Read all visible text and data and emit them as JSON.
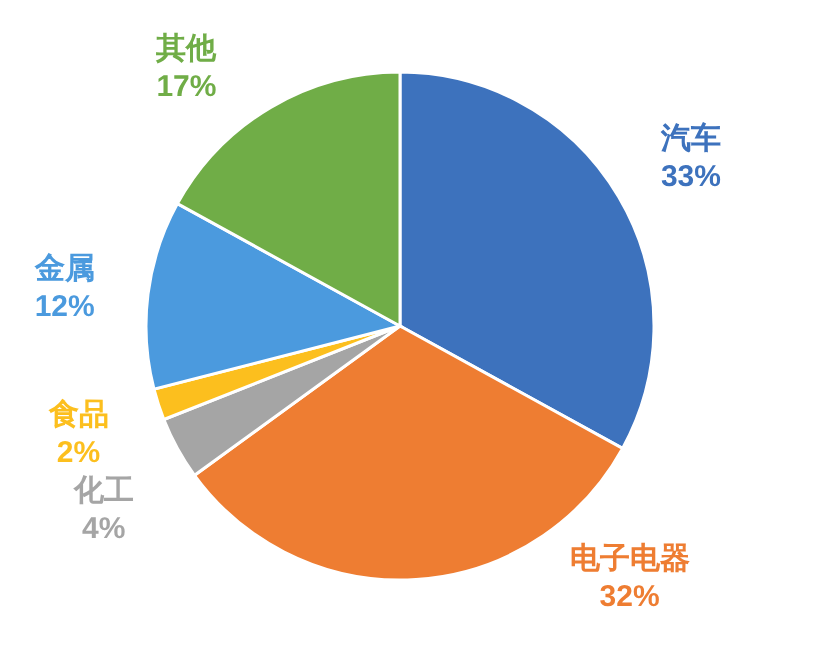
{
  "chart_data": {
    "type": "pie",
    "categories": [
      "汽车",
      "电子电器",
      "化工",
      "食品",
      "金属",
      "其他"
    ],
    "values": [
      33,
      32,
      4,
      2,
      12,
      17
    ],
    "colors": [
      "#3d72bd",
      "#ee7d32",
      "#a5a5a5",
      "#fcbf1e",
      "#4b9ade",
      "#70ad47"
    ],
    "value_labels": [
      "33%",
      "32%",
      "4%",
      "2%",
      "12%",
      "17%"
    ]
  }
}
